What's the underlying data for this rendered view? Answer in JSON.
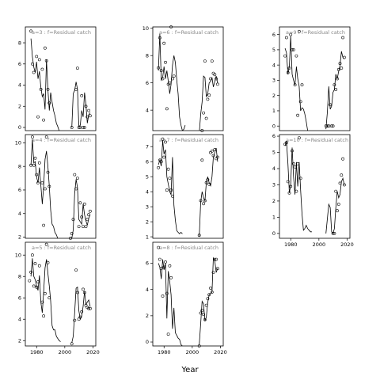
{
  "figure": {
    "xlabel": "Year"
  },
  "chart_data": [
    {
      "type": "line",
      "panel": "a=3",
      "label": "a=3  :  f=Residual catch",
      "xlim": [
        1972,
        2022
      ],
      "ylim": [
        -0.3,
        9.5
      ],
      "yticks": [
        0,
        2,
        4,
        6,
        8
      ],
      "xticks": [],
      "show_x_ticklabels": false,
      "line": {
        "x": [
          1976,
          1977,
          1978,
          1979,
          1980,
          1981,
          1982,
          1983,
          1984,
          1985,
          1986,
          1987,
          1988,
          1989,
          1990,
          1991,
          1992,
          1993,
          1994,
          1995,
          1996,
          2005,
          2006,
          2007,
          2008,
          2009,
          2010,
          2011,
          2012,
          2013,
          2014,
          2015,
          2016,
          2017,
          2018
        ],
        "y": [
          8.4,
          6.7,
          5.7,
          5.2,
          6.2,
          4.6,
          5.3,
          3.8,
          2.9,
          3.2,
          1.7,
          6.4,
          3.6,
          1.6,
          3.3,
          2.4,
          1.6,
          1.1,
          0.4,
          0.1,
          -0.3,
          0.0,
          3.2,
          3.5,
          4.3,
          3.6,
          0.1,
          0.2,
          1.6,
          1.0,
          3.3,
          2.2,
          0.4,
          1.2,
          1.4
        ]
      },
      "points": {
        "x": [
          1976,
          1977,
          1978,
          1980,
          1981,
          1982,
          1983,
          1984,
          1985,
          1986,
          1987,
          1988,
          1989,
          2005,
          2008,
          2009,
          2010,
          2011,
          2012,
          2013,
          2014,
          2015,
          2016,
          2017,
          2018
        ],
        "y": [
          9.1,
          6.0,
          5.2,
          6.7,
          1.0,
          6.4,
          3.6,
          5.5,
          0.7,
          7.5,
          6.3,
          3.6,
          2.3,
          0.0,
          3.6,
          5.6,
          0.0,
          0.0,
          3.0,
          0.0,
          0.0,
          2.0,
          1.0,
          1.6,
          1.1
        ]
      }
    },
    {
      "type": "line",
      "panel": "a=4",
      "label": "a=4  :  f=Residual catch",
      "xlim": [
        1972,
        2022
      ],
      "ylim": [
        1.9,
        10.7
      ],
      "yticks": [
        2,
        4,
        6,
        8,
        10
      ],
      "xticks": [],
      "show_x_ticklabels": false,
      "line": {
        "x": [
          1976,
          1977,
          1978,
          1979,
          1980,
          1981,
          1982,
          1983,
          1984,
          1985,
          1986,
          1987,
          1988,
          1989,
          1990,
          1991,
          1992,
          1993,
          1994,
          1995,
          2005,
          2006,
          2007,
          2008,
          2009,
          2010,
          2011,
          2012,
          2013,
          2014,
          2015,
          2016,
          2017,
          2018
        ],
        "y": [
          8.1,
          10.3,
          8.3,
          8.4,
          7.1,
          6.6,
          7.9,
          6.4,
          4.8,
          6.3,
          8.6,
          9.3,
          8.0,
          6.3,
          4.3,
          3.1,
          2.9,
          2.4,
          2.2,
          1.9,
          1.9,
          2.6,
          5.7,
          6.9,
          6.2,
          3.5,
          3.3,
          3.1,
          4.8,
          3.9,
          3.4,
          3.0,
          3.6,
          3.9
        ]
      },
      "points": {
        "x": [
          1976,
          1977,
          1978,
          1979,
          1980,
          1981,
          1982,
          1984,
          1985,
          1986,
          1987,
          1988,
          1989,
          2004,
          2005,
          2006,
          2007,
          2008,
          2009,
          2010,
          2011,
          2012,
          2013,
          2014,
          2015,
          2016,
          2017,
          2018
        ],
        "y": [
          8.1,
          10.5,
          8.1,
          8.7,
          7.3,
          6.6,
          8.3,
          6.6,
          3.0,
          6.1,
          10.5,
          7.5,
          6.3,
          1.9,
          2.3,
          3.5,
          7.3,
          6.1,
          7.0,
          2.9,
          4.9,
          3.7,
          2.9,
          4.8,
          2.9,
          3.5,
          3.9,
          4.2
        ]
      }
    },
    {
      "type": "line",
      "panel": "a=5",
      "label": "a=5  :  f=Residual catch",
      "xlim": [
        1972,
        2022
      ],
      "ylim": [
        1.5,
        11.2
      ],
      "yticks": [
        2,
        4,
        6,
        8,
        10
      ],
      "xticks": [
        1980,
        2000,
        2020
      ],
      "show_x_ticklabels": true,
      "line": {
        "x": [
          1976,
          1977,
          1978,
          1979,
          1980,
          1981,
          1982,
          1983,
          1984,
          1985,
          1986,
          1987,
          1988,
          1989,
          1990,
          1991,
          1992,
          1993,
          1994,
          1995,
          1996,
          1997,
          2005,
          2006,
          2007,
          2008,
          2009,
          2010,
          2011,
          2012,
          2013,
          2014,
          2015,
          2016,
          2017,
          2018
        ],
        "y": [
          8.0,
          9.7,
          8.0,
          7.7,
          7.1,
          6.7,
          8.1,
          5.6,
          4.6,
          6.5,
          8.8,
          9.6,
          8.3,
          7.1,
          5.7,
          3.4,
          3.0,
          3.0,
          2.4,
          2.2,
          2.0,
          1.9,
          1.8,
          2.4,
          4.6,
          6.9,
          7.0,
          4.8,
          4.0,
          4.3,
          5.2,
          6.6,
          5.4,
          5.6,
          5.8,
          5.2
        ]
      },
      "points": {
        "x": [
          1975,
          1976,
          1977,
          1978,
          1979,
          1980,
          1981,
          1982,
          1984,
          1985,
          1986,
          1987,
          1988,
          1989,
          2005,
          2007,
          2008,
          2009,
          2010,
          2011,
          2012,
          2013,
          2014,
          2015,
          2016,
          2017,
          2018
        ],
        "y": [
          7.6,
          8.4,
          10.0,
          7.1,
          9.2,
          7.0,
          7.5,
          9.0,
          5.6,
          4.3,
          6.4,
          11.0,
          9.3,
          6.0,
          1.7,
          3.9,
          8.6,
          6.5,
          4.0,
          4.2,
          4.7,
          6.8,
          6.5,
          5.3,
          5.1,
          5.0,
          5.0
        ]
      }
    },
    {
      "type": "line",
      "panel": "a=6",
      "label": "a=6  :  f=Residual catch",
      "xlim": [
        1972,
        2022
      ],
      "ylim": [
        2.5,
        10.1
      ],
      "yticks": [
        4,
        6,
        8,
        10
      ],
      "xticks": [],
      "show_x_ticklabels": false,
      "line": {
        "x": [
          1976,
          1977,
          1978,
          1979,
          1980,
          1981,
          1982,
          1983,
          1984,
          1985,
          1986,
          1987,
          1988,
          1989,
          1990,
          1991,
          1992,
          1993,
          1994,
          1995,
          2005,
          2006,
          2007,
          2008,
          2009,
          2010,
          2011,
          2012,
          2013,
          2014,
          2015,
          2016,
          2017,
          2018
        ],
        "y": [
          6.9,
          9.6,
          6.2,
          6.4,
          7.2,
          6.3,
          6.9,
          6.1,
          5.2,
          5.9,
          7.3,
          8.0,
          7.5,
          6.2,
          5.2,
          3.5,
          2.9,
          2.5,
          2.6,
          2.9,
          2.3,
          3.7,
          4.6,
          6.5,
          6.4,
          5.0,
          5.2,
          6.0,
          6.1,
          6.4,
          5.7,
          6.1,
          6.5,
          6.0
        ]
      },
      "points": {
        "x": [
          1976,
          1977,
          1978,
          1979,
          1980,
          1981,
          1982,
          1983,
          1984,
          1985,
          1986,
          1987,
          2007,
          2008,
          2009,
          2010,
          2011,
          2012,
          2013,
          2014,
          2015,
          2016,
          2017,
          2018
        ],
        "y": [
          7.1,
          9.3,
          6.9,
          6.3,
          8.9,
          7.5,
          4.1,
          5.9,
          6.0,
          10.1,
          6.3,
          6.5,
          2.5,
          3.8,
          7.6,
          3.4,
          4.8,
          5.1,
          6.3,
          7.6,
          6.7,
          6.6,
          6.3,
          5.9
        ]
      }
    },
    {
      "type": "line",
      "panel": "a=7",
      "label": "a=7  :  f=Residual catch",
      "xlim": [
        1972,
        2022
      ],
      "ylim": [
        0.9,
        7.8
      ],
      "yticks": [
        1,
        2,
        3,
        4,
        5,
        6,
        7
      ],
      "xticks": [],
      "show_x_ticklabels": false,
      "line": {
        "x": [
          1976,
          1977,
          1978,
          1979,
          1980,
          1981,
          1982,
          1983,
          1984,
          1985,
          1986,
          1987,
          1988,
          1989,
          1990,
          1991,
          1992,
          1993,
          2005,
          2006,
          2007,
          2008,
          2009,
          2010,
          2011,
          2012,
          2013,
          2014,
          2015,
          2016,
          2017,
          2018
        ],
        "y": [
          5.8,
          6.1,
          5.7,
          7.4,
          6.5,
          6.8,
          5.0,
          4.5,
          4.0,
          3.8,
          6.3,
          3.1,
          2.1,
          1.4,
          1.3,
          1.2,
          1.3,
          1.2,
          1.0,
          3.3,
          4.0,
          3.6,
          3.4,
          4.6,
          5.0,
          4.6,
          4.4,
          5.0,
          6.3,
          6.6,
          6.9,
          6.0
        ]
      },
      "points": {
        "x": [
          1976,
          1977,
          1978,
          1979,
          1980,
          1981,
          1982,
          1983,
          1984,
          1985,
          1986,
          2005,
          2006,
          2007,
          2008,
          2009,
          2010,
          2011,
          2012,
          2013,
          2014,
          2015,
          2016,
          2017,
          2018
        ],
        "y": [
          5.6,
          6.1,
          6.0,
          7.5,
          6.3,
          7.3,
          4.1,
          5.5,
          4.9,
          4.1,
          3.7,
          1.1,
          3.4,
          6.1,
          3.2,
          3.4,
          4.6,
          4.8,
          4.5,
          6.6,
          6.7,
          6.4,
          6.8,
          6.2,
          6.3
        ]
      }
    },
    {
      "type": "line",
      "panel": "a=8",
      "label": "a=8  :  f=Residual catch",
      "xlim": [
        1972,
        2022
      ],
      "ylim": [
        -0.3,
        7.6
      ],
      "yticks": [
        0,
        2,
        4,
        6
      ],
      "xticks": [
        1980,
        2000,
        2020
      ],
      "show_x_ticklabels": true,
      "line": {
        "x": [
          1976,
          1977,
          1978,
          1979,
          1980,
          1981,
          1982,
          1983,
          1984,
          1985,
          1986,
          1987,
          1988,
          1989,
          1990,
          1991,
          1992,
          1993,
          2005,
          2006,
          2007,
          2008,
          2009,
          2010,
          2011,
          2012,
          2013,
          2014,
          2015,
          2016,
          2017,
          2018
        ],
        "y": [
          6.0,
          5.7,
          4.8,
          6.3,
          5.5,
          6.0,
          1.8,
          5.4,
          4.6,
          3.6,
          1.0,
          2.6,
          0.7,
          0.5,
          0.3,
          0.2,
          -0.2,
          -0.3,
          -0.2,
          1.4,
          3.1,
          2.9,
          1.6,
          1.9,
          3.0,
          3.6,
          3.7,
          3.8,
          6.4,
          6.2,
          5.3,
          5.6
        ]
      },
      "points": {
        "x": [
          1976,
          1977,
          1978,
          1979,
          1980,
          1981,
          1982,
          1983,
          1984,
          1985,
          2005,
          2006,
          2007,
          2008,
          2009,
          2010,
          2011,
          2012,
          2013,
          2014,
          2015,
          2016,
          2017,
          2018
        ],
        "y": [
          7.2,
          6.3,
          5.6,
          3.5,
          5.7,
          6.1,
          3.7,
          0.6,
          5.8,
          4.9,
          -0.3,
          2.2,
          2.4,
          2.1,
          1.7,
          2.8,
          3.3,
          3.6,
          4.1,
          3.8,
          5.3,
          6.3,
          6.3,
          5.6
        ]
      }
    },
    {
      "type": "line",
      "panel": "a=9",
      "label": "a=9  :  f=Residual catch",
      "xlim": [
        1972,
        2022
      ],
      "ylim": [
        -0.3,
        6.5
      ],
      "yticks": [
        0,
        1,
        2,
        3,
        4,
        5,
        6
      ],
      "xticks": [],
      "show_x_ticklabels": false,
      "line": {
        "x": [
          1976,
          1977,
          1978,
          1979,
          1980,
          1981,
          1982,
          1983,
          1984,
          1985,
          1986,
          1987,
          1988,
          1989,
          1990,
          1991,
          1992,
          2005,
          2006,
          2007,
          2008,
          2009,
          2010,
          2011,
          2012,
          2013,
          2014,
          2015,
          2016,
          2017,
          2018
        ],
        "y": [
          5.1,
          4.8,
          3.4,
          3.9,
          5.9,
          3.4,
          3.0,
          2.7,
          3.9,
          3.1,
          2.6,
          1.0,
          1.2,
          1.1,
          0.8,
          0.3,
          -0.3,
          -0.2,
          0.9,
          2.6,
          1.1,
          1.3,
          2.2,
          2.4,
          3.4,
          3.1,
          3.6,
          4.0,
          4.9,
          4.5,
          4.4
        ]
      },
      "points": {
        "x": [
          1976,
          1977,
          1978,
          1979,
          1980,
          1981,
          1982,
          1983,
          1984,
          1985,
          1986,
          1987,
          1988,
          2005,
          2006,
          2007,
          2008,
          2009,
          2010,
          2011,
          2012,
          2013,
          2014,
          2015,
          2016,
          2017,
          2018
        ],
        "y": [
          4.6,
          5.8,
          3.5,
          3.8,
          6.0,
          5.0,
          5.0,
          2.7,
          4.6,
          0.7,
          6.2,
          1.6,
          2.7,
          0.0,
          0.0,
          0.0,
          1.4,
          0.0,
          0.0,
          2.7,
          2.4,
          3.1,
          3.7,
          4.1,
          3.8,
          5.8,
          4.5
        ]
      }
    },
    {
      "type": "line",
      "panel": "a=10",
      "label": "a=10  :  f=Residual catch",
      "xlim": [
        1972,
        2022
      ],
      "ylim": [
        -0.3,
        6.1
      ],
      "yticks": [
        0,
        1,
        2,
        3,
        4,
        5,
        6
      ],
      "xticks": [
        1980,
        2000,
        2020
      ],
      "show_x_ticklabels": true,
      "line": {
        "x": [
          1976,
          1977,
          1978,
          1979,
          1980,
          1981,
          1982,
          1983,
          1984,
          1985,
          1986,
          1987,
          1988,
          1989,
          1990,
          1991,
          1992,
          1993,
          1994,
          1995,
          2005,
          2006,
          2007,
          2008,
          2009,
          2010,
          2011,
          2012,
          2013,
          2014,
          2015,
          2016,
          2017,
          2018
        ],
        "y": [
          5.4,
          5.7,
          4.3,
          2.5,
          3.0,
          5.3,
          3.5,
          2.4,
          4.4,
          2.9,
          4.4,
          2.7,
          1.2,
          0.2,
          0.3,
          0.5,
          0.3,
          0.2,
          0.1,
          0.1,
          0.0,
          0.9,
          1.8,
          1.6,
          0.1,
          0.0,
          0.3,
          1.6,
          2.6,
          2.2,
          2.4,
          3.2,
          3.4,
          3.0
        ]
      },
      "points": {
        "x": [
          1976,
          1977,
          1978,
          1979,
          1980,
          1981,
          1982,
          1983,
          1984,
          1985,
          1986,
          1987,
          2010,
          2011,
          2012,
          2013,
          2014,
          2015,
          2016,
          2017,
          2018
        ],
        "y": [
          5.5,
          5.6,
          3.2,
          2.5,
          2.9,
          5.1,
          4.3,
          4.1,
          2.6,
          4.3,
          5.9,
          3.4,
          0.0,
          0.0,
          2.6,
          1.4,
          1.8,
          3.1,
          3.6,
          4.6,
          3.0
        ]
      }
    }
  ]
}
